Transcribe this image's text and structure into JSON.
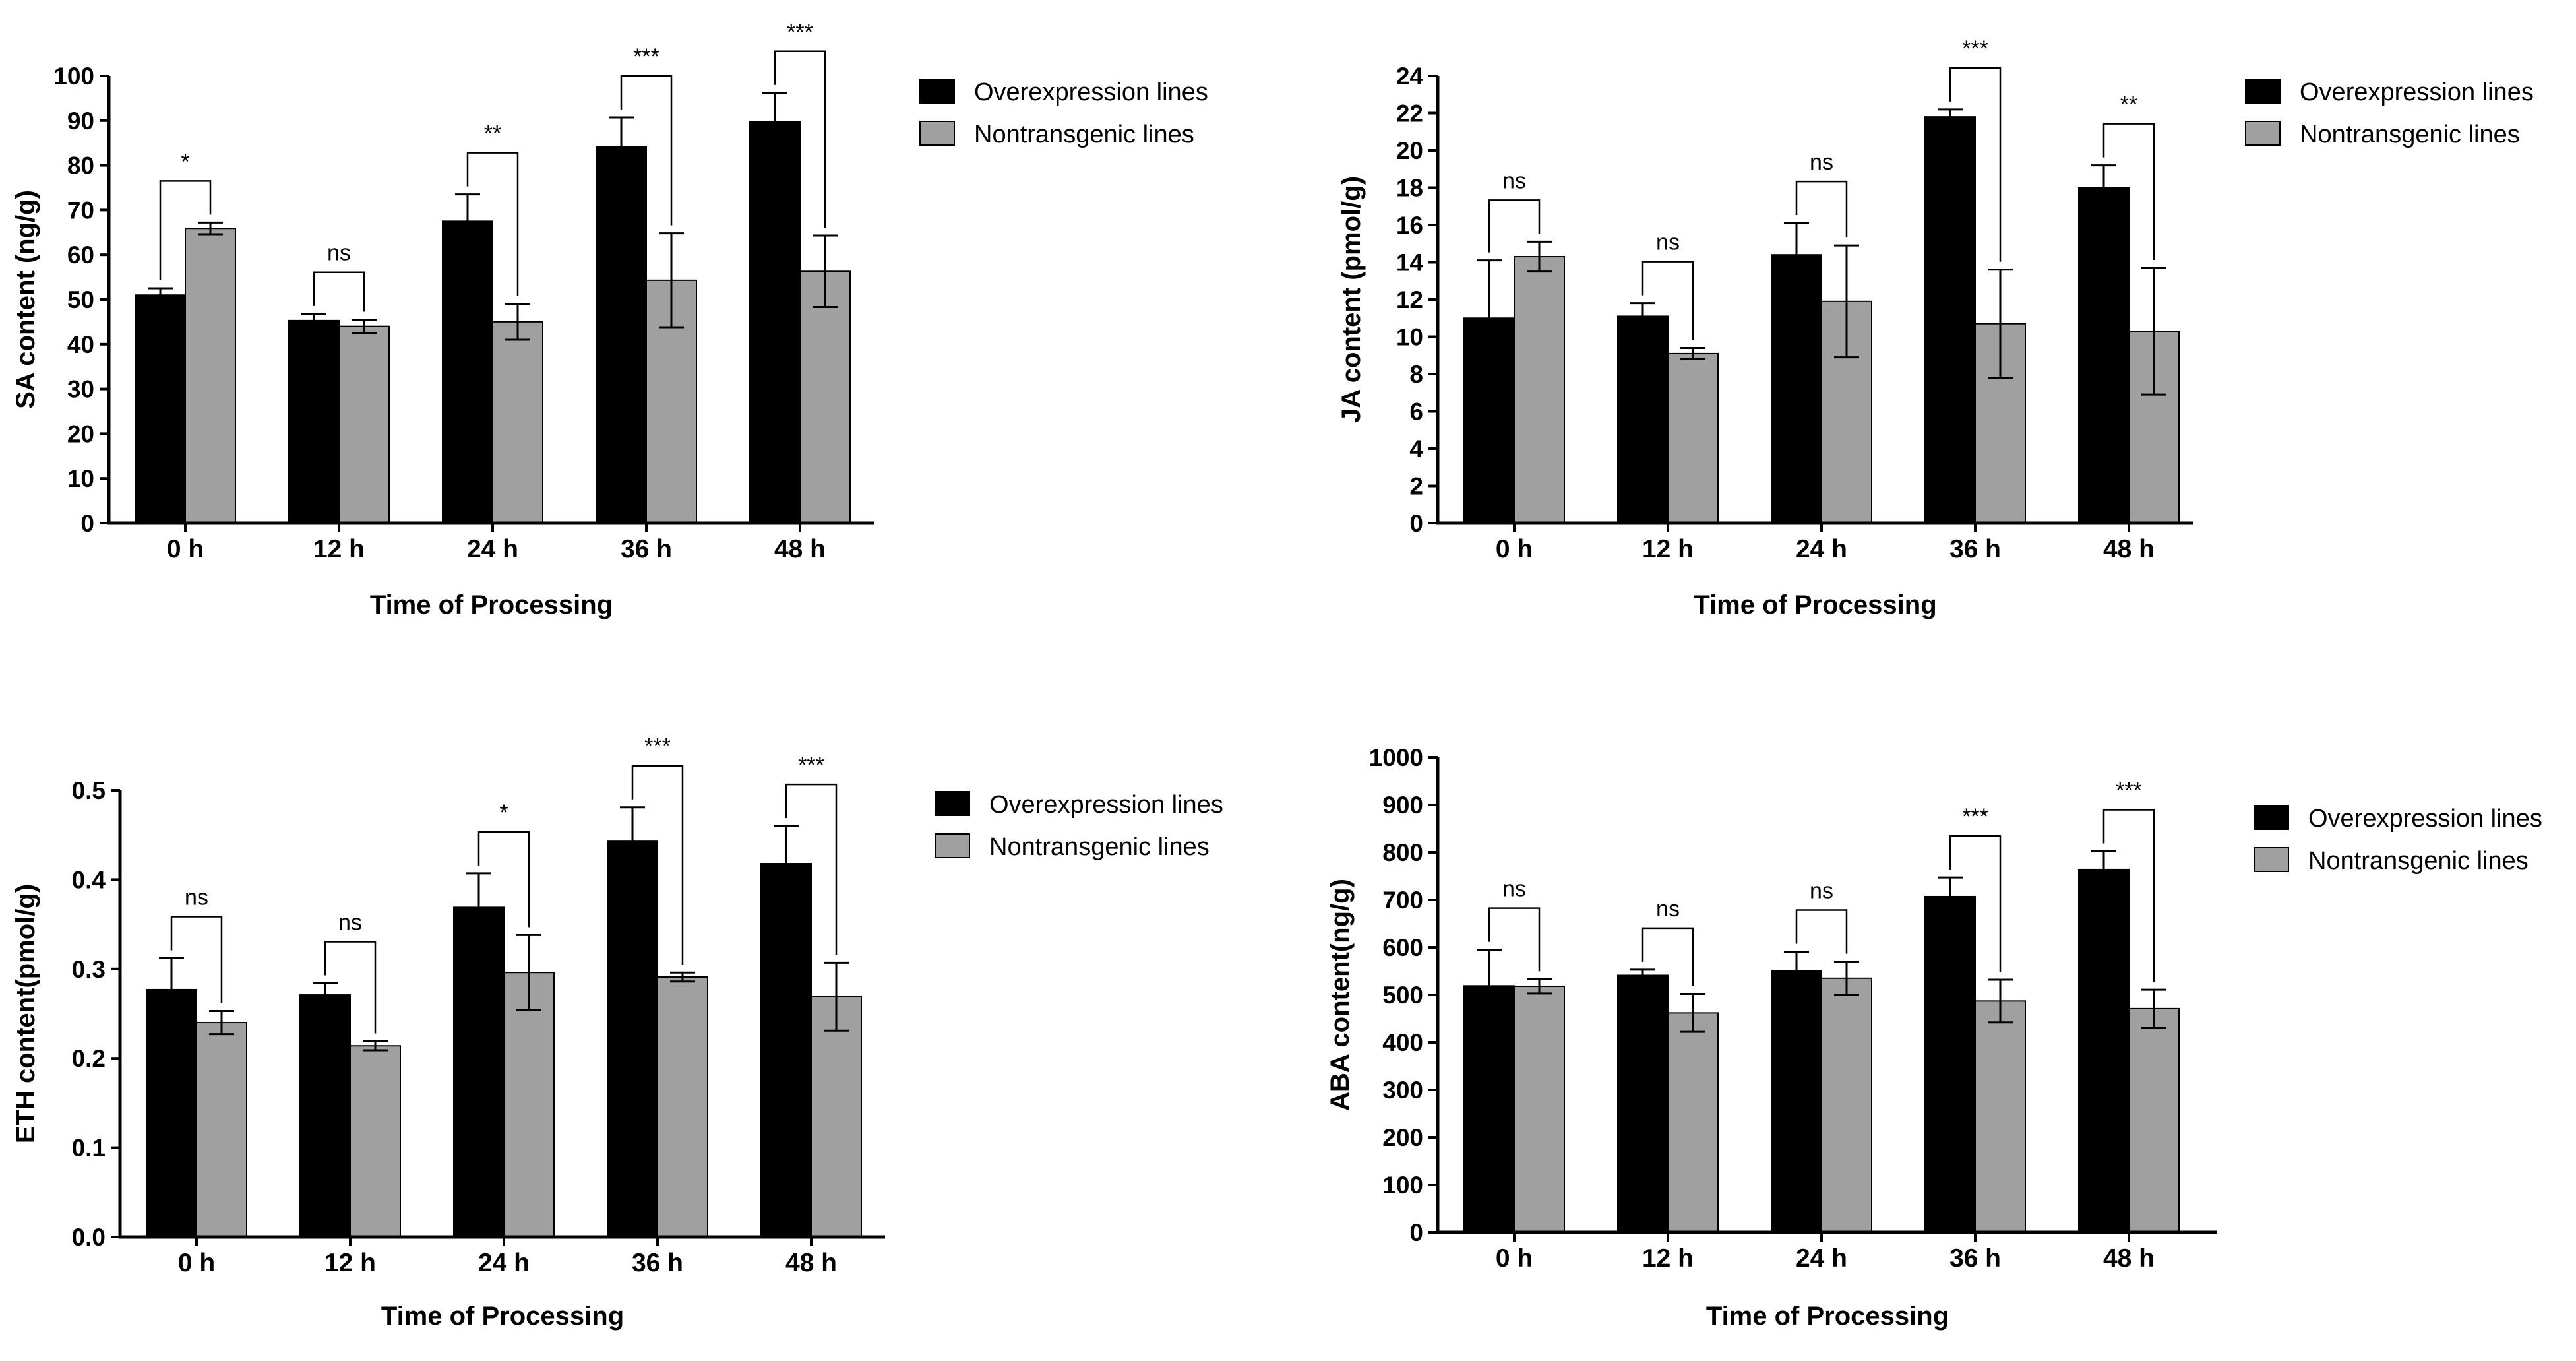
{
  "colors": {
    "overexpression": "#000000",
    "nontransgenic": "#a0a0a0",
    "axis": "#000000"
  },
  "chart_data": [
    {
      "type": "bar",
      "id": "sa",
      "title": "",
      "xlabel": "Time of Processing",
      "ylabel": "SA content (ng/g)",
      "categories": [
        "0 h",
        "12 h",
        "24 h",
        "36 h",
        "48 h"
      ],
      "ylim": [
        0,
        100
      ],
      "yticks": [
        "0",
        "10",
        "20",
        "30",
        "40",
        "50",
        "60",
        "70",
        "80",
        "90",
        "100"
      ],
      "legend": {
        "position": "top-right",
        "entries": [
          "Overexpression lines",
          "Nontransgenic lines"
        ]
      },
      "series": [
        {
          "name": "Overexpression lines",
          "values": [
            51,
            45.3,
            67.5,
            84.2,
            89.7
          ],
          "errors": [
            1.5,
            1.5,
            6.0,
            6.5,
            6.5
          ]
        },
        {
          "name": "Nontransgenic lines",
          "values": [
            65.9,
            44,
            45,
            54.3,
            56.3
          ],
          "errors": [
            1.3,
            1.5,
            4.0,
            10.5,
            8.0
          ]
        }
      ],
      "significance": [
        "*",
        "ns",
        "**",
        "***",
        "***"
      ]
    },
    {
      "type": "bar",
      "id": "ja",
      "title": "",
      "xlabel": "Time of Processing",
      "ylabel": "JA content (pmol/g)",
      "categories": [
        "0 h",
        "12 h",
        "24 h",
        "36 h",
        "48 h"
      ],
      "ylim": [
        0,
        24
      ],
      "yticks": [
        "0",
        "2",
        "4",
        "6",
        "8",
        "10",
        "12",
        "14",
        "16",
        "18",
        "20",
        "22",
        "24"
      ],
      "legend": {
        "position": "top-right",
        "entries": [
          "Overexpression lines",
          "Nontransgenic lines"
        ]
      },
      "series": [
        {
          "name": "Overexpression lines",
          "values": [
            11,
            11.1,
            14.4,
            21.8,
            18
          ],
          "errors": [
            3.1,
            0.7,
            1.7,
            0.4,
            1.2
          ]
        },
        {
          "name": "Nontransgenic lines",
          "values": [
            14.3,
            9.1,
            11.9,
            10.7,
            10.3
          ],
          "errors": [
            0.8,
            0.3,
            3.0,
            2.9,
            3.4
          ]
        }
      ],
      "significance": [
        "ns",
        "ns",
        "ns",
        "***",
        "**"
      ]
    },
    {
      "type": "bar",
      "id": "eth",
      "title": "",
      "xlabel": "Time of Processing",
      "ylabel": "ETH content(pmol/g)",
      "categories": [
        "0 h",
        "12 h",
        "24 h",
        "36 h",
        "48 h"
      ],
      "ylim": [
        0,
        0.5
      ],
      "yticks": [
        "0.0",
        "0.1",
        "0.2",
        "0.3",
        "0.4",
        "0.5"
      ],
      "legend": {
        "position": "top-right",
        "entries": [
          "Overexpression lines",
          "Nontransgenic lines"
        ]
      },
      "series": [
        {
          "name": "Overexpression lines",
          "values": [
            0.277,
            0.271,
            0.369,
            0.443,
            0.418
          ],
          "errors": [
            0.035,
            0.013,
            0.038,
            0.038,
            0.042
          ]
        },
        {
          "name": "Nontransgenic lines",
          "values": [
            0.24,
            0.214,
            0.296,
            0.291,
            0.269
          ],
          "errors": [
            0.013,
            0.005,
            0.042,
            0.005,
            0.038
          ]
        }
      ],
      "significance": [
        "ns",
        "ns",
        "*",
        "***",
        "***"
      ]
    },
    {
      "type": "bar",
      "id": "aba",
      "title": "",
      "xlabel": "Time of Processing",
      "ylabel": "ABA content(ng/g)",
      "categories": [
        "0 h",
        "12 h",
        "24 h",
        "36 h",
        "48 h"
      ],
      "ylim": [
        0,
        1000
      ],
      "yticks": [
        "0",
        "100",
        "200",
        "300",
        "400",
        "500",
        "600",
        "700",
        "800",
        "900",
        "1000"
      ],
      "legend": {
        "position": "top-right",
        "entries": [
          "Overexpression lines",
          "Nontransgenic lines"
        ]
      },
      "series": [
        {
          "name": "Overexpression lines",
          "values": [
            519,
            541,
            551,
            707,
            764
          ],
          "errors": [
            76,
            12,
            40,
            40,
            38
          ]
        },
        {
          "name": "Nontransgenic lines",
          "values": [
            518,
            462,
            535,
            487,
            471
          ],
          "errors": [
            15,
            40,
            35,
            45,
            40
          ]
        }
      ],
      "significance": [
        "ns",
        "ns",
        "ns",
        "***",
        "***"
      ]
    }
  ]
}
